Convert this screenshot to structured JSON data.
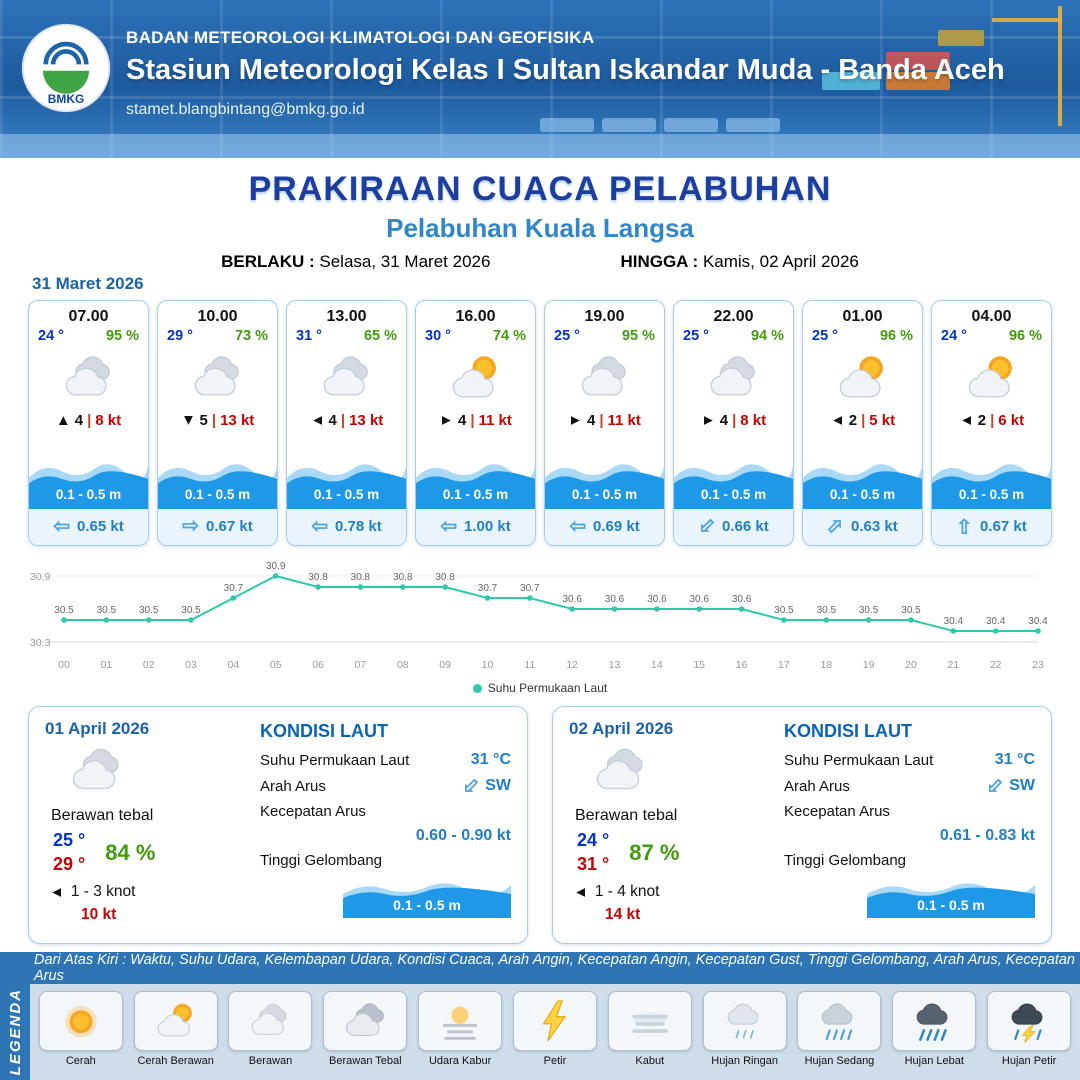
{
  "header": {
    "agency": "BADAN METEOROLOGI KLIMATOLOGI DAN GEOFISIKA",
    "station": "Stasiun Meteorologi Kelas I Sultan Iskandar Muda - Banda Aceh",
    "email": "stamet.blangbintang@bmkg.go.id",
    "logo_text": "BMKG"
  },
  "title": {
    "main": "PRAKIRAAN CUACA PELABUHAN",
    "port": "Pelabuhan Kuala Langsa",
    "valid_label": "BERLAKU :",
    "valid_value": "Selasa, 31 Maret 2026",
    "until_label": "HINGGA :",
    "until_value": "Kamis, 02 April 2026"
  },
  "forecast_date": "31 Maret 2026",
  "forecast_cards": [
    {
      "time": "07.00",
      "temp": "24 °",
      "humidity": "95 %",
      "icon": "cloud",
      "wind_dir": "0",
      "wind": "4",
      "gust": "8 kt",
      "wave": "0.1 - 0.5 m",
      "current_dir": "180",
      "current": "0.65 kt"
    },
    {
      "time": "10.00",
      "temp": "29 °",
      "humidity": "73 %",
      "icon": "cloud",
      "wind_dir": "180",
      "wind": "5",
      "gust": "13 kt",
      "wave": "0.1 - 0.5 m",
      "current_dir": "0",
      "current": "0.67 kt"
    },
    {
      "time": "13.00",
      "temp": "31 °",
      "humidity": "65 %",
      "icon": "cloud",
      "wind_dir": "270",
      "wind": "4",
      "gust": "13 kt",
      "wave": "0.1 - 0.5 m",
      "current_dir": "180",
      "current": "0.78 kt"
    },
    {
      "time": "16.00",
      "temp": "30 °",
      "humidity": "74 %",
      "icon": "sun-cloud",
      "wind_dir": "90",
      "wind": "4",
      "gust": "11 kt",
      "wave": "0.1 - 0.5 m",
      "current_dir": "180",
      "current": "1.00 kt"
    },
    {
      "time": "19.00",
      "temp": "25 °",
      "humidity": "95 %",
      "icon": "cloud",
      "wind_dir": "90",
      "wind": "4",
      "gust": "11 kt",
      "wave": "0.1 - 0.5 m",
      "current_dir": "180",
      "current": "0.69 kt"
    },
    {
      "time": "22.00",
      "temp": "25 °",
      "humidity": "94 %",
      "icon": "cloud",
      "wind_dir": "90",
      "wind": "4",
      "gust": "8 kt",
      "wave": "0.1 - 0.5 m",
      "current_dir": "135",
      "current": "0.66 kt"
    },
    {
      "time": "01.00",
      "temp": "25 °",
      "humidity": "96 %",
      "icon": "sun-cloud",
      "wind_dir": "270",
      "wind": "2",
      "gust": "5 kt",
      "wave": "0.1 - 0.5 m",
      "current_dir": "315",
      "current": "0.63 kt"
    },
    {
      "time": "04.00",
      "temp": "24 °",
      "humidity": "96 %",
      "icon": "sun-cloud",
      "wind_dir": "270",
      "wind": "2",
      "gust": "6 kt",
      "wave": "0.1 - 0.5 m",
      "current_dir": "270",
      "current": "0.67 kt"
    }
  ],
  "chart_data": {
    "type": "line",
    "series_label": "Suhu Permukaan Laut",
    "x": [
      "00",
      "01",
      "02",
      "03",
      "04",
      "05",
      "06",
      "07",
      "08",
      "09",
      "10",
      "11",
      "12",
      "13",
      "14",
      "15",
      "16",
      "17",
      "18",
      "19",
      "20",
      "21",
      "22",
      "23"
    ],
    "values": [
      30.5,
      30.5,
      30.5,
      30.5,
      30.7,
      30.9,
      30.8,
      30.8,
      30.8,
      30.8,
      30.7,
      30.7,
      30.6,
      30.6,
      30.6,
      30.6,
      30.6,
      30.5,
      30.5,
      30.5,
      30.5,
      30.4,
      30.4,
      30.4
    ],
    "ylim": [
      30.3,
      30.9
    ],
    "line_color": "#2ec9ac",
    "legend_position": "bottom",
    "grid": false
  },
  "daily": [
    {
      "date": "01 April 2026",
      "icon": "cloud",
      "condition": "Berawan tebal",
      "temp_min": "25 °",
      "temp_max": "29 °",
      "humidity": "84 %",
      "wind_dir": "270",
      "wind_range": "1 - 3 knot",
      "gust": "10 kt",
      "sea": {
        "title": "KONDISI LAUT",
        "sst_label": "Suhu Permukaan Laut",
        "sst": "31 °C",
        "current_dir_label": "Arah Arus",
        "current_dir": "SW",
        "current_dir_rot": "135",
        "current_speed_label": "Kecepatan Arus",
        "current_speed": "0.60 - 0.90 kt",
        "wave_label": "Tinggi Gelombang",
        "wave": "0.1 - 0.5 m"
      }
    },
    {
      "date": "02 April 2026",
      "icon": "cloud",
      "condition": "Berawan tebal",
      "temp_min": "24 °",
      "temp_max": "31 °",
      "humidity": "87 %",
      "wind_dir": "270",
      "wind_range": "1 - 4 knot",
      "gust": "14 kt",
      "sea": {
        "title": "KONDISI LAUT",
        "sst_label": "Suhu Permukaan Laut",
        "sst": "31 °C",
        "current_dir_label": "Arah Arus",
        "current_dir": "SW",
        "current_dir_rot": "135",
        "current_speed_label": "Kecepatan Arus",
        "current_speed": "0.61 - 0.83 kt",
        "wave_label": "Tinggi Gelombang",
        "wave": "0.1 - 0.5 m"
      }
    }
  ],
  "footer": {
    "bar_text": "Dari Atas Kiri : Waktu, Suhu Udara, Kelembapan Udara, Kondisi Cuaca, Arah Angin, Kecepatan Angin, Kecepatan Gust, Tinggi Gelombang, Arah Arus, Kecepatan Arus",
    "legend_title": "LEGENDA",
    "legend_items": [
      {
        "label": "Cerah",
        "icon": "sun"
      },
      {
        "label": "Cerah Berawan",
        "icon": "sun-cloud"
      },
      {
        "label": "Berawan",
        "icon": "cloud"
      },
      {
        "label": "Berawan Tebal",
        "icon": "cloud-thick"
      },
      {
        "label": "Udara Kabur",
        "icon": "haze"
      },
      {
        "label": "Petir",
        "icon": "lightning"
      },
      {
        "label": "Kabut",
        "icon": "fog"
      },
      {
        "label": "Hujan Ringan",
        "icon": "rain-light"
      },
      {
        "label": "Hujan Sedang",
        "icon": "rain-medium"
      },
      {
        "label": "Hujan Lebat",
        "icon": "rain-heavy"
      },
      {
        "label": "Hujan Petir",
        "icon": "thunderstorm"
      }
    ]
  },
  "colors": {
    "accent_blue": "#2e75b6",
    "title_blue": "#1c3e9e",
    "port_blue": "#2f86c8",
    "temp_blue": "#0033cc",
    "humidity_green": "#3f9c0b",
    "alert_red": "#cc0000",
    "wave_blue": "#1d99e8",
    "chart_teal": "#2ec9ac"
  }
}
